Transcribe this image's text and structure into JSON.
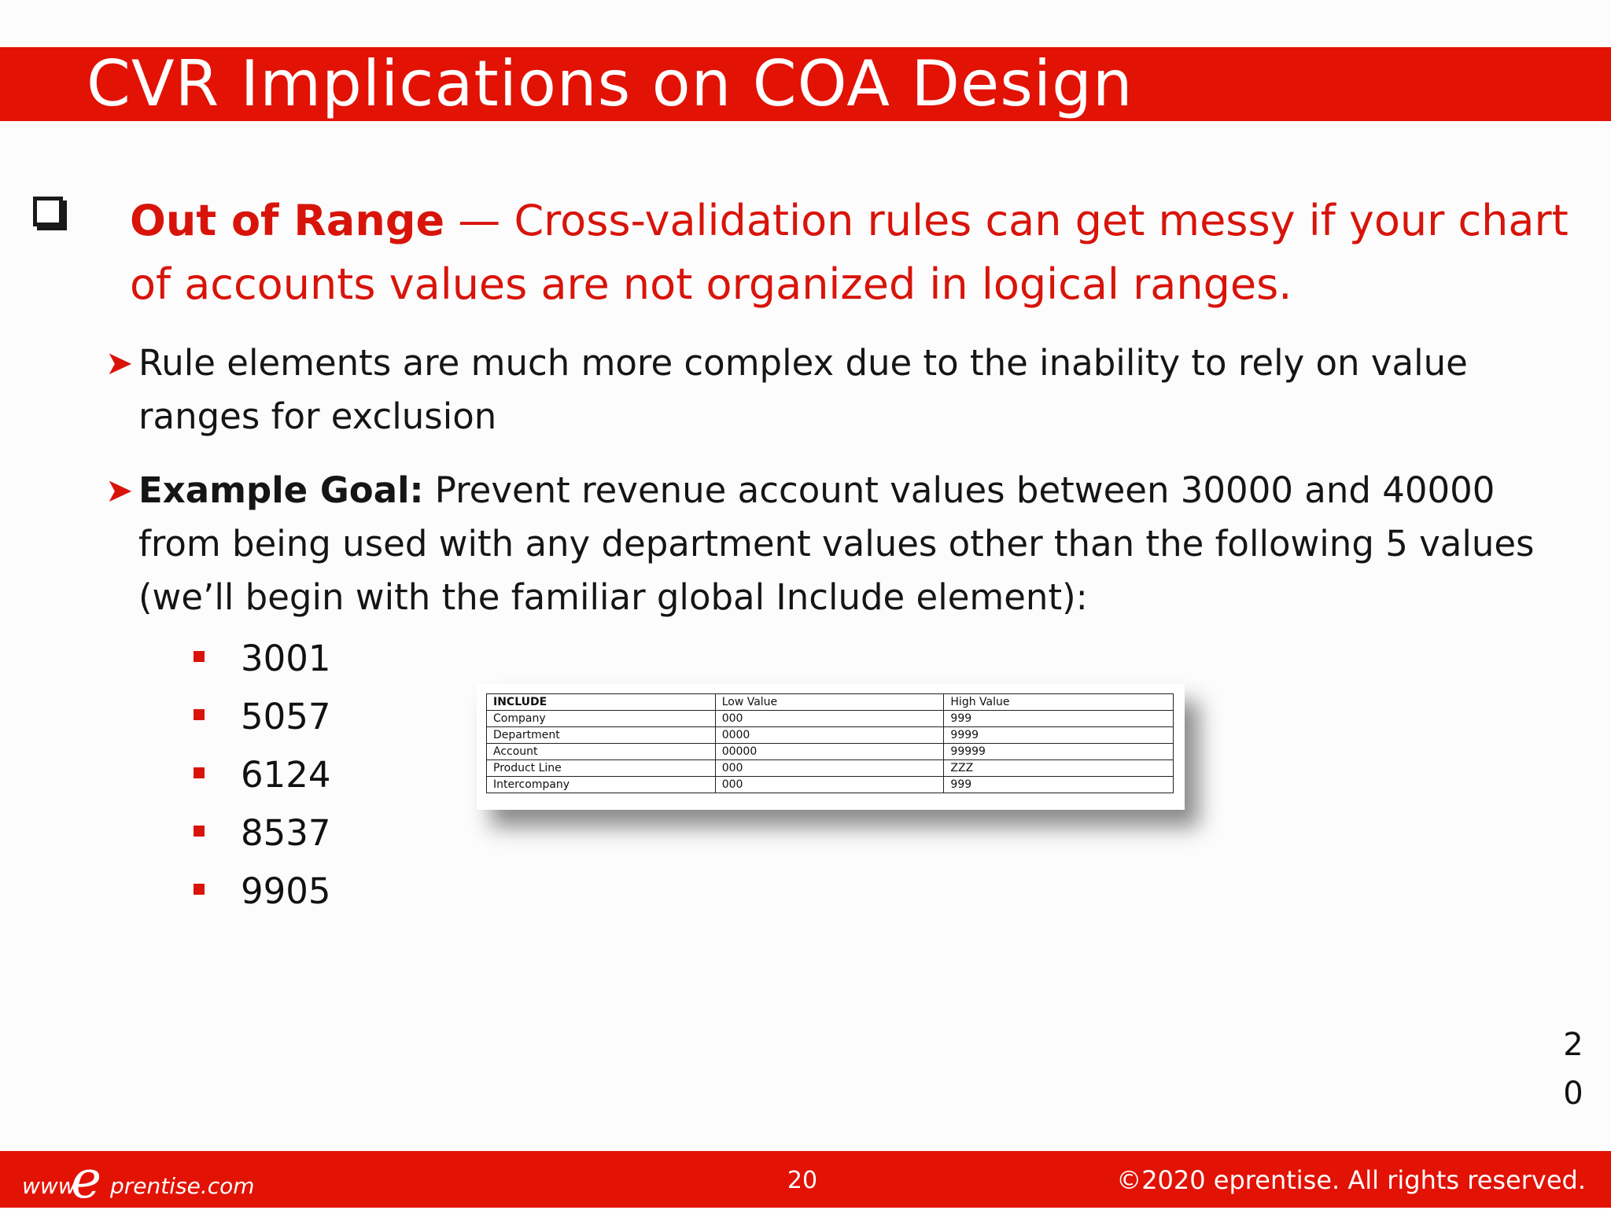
{
  "title": "CVR Implications on COA Design",
  "heading": {
    "bold": "Out of Range",
    "rest": " — Cross-validation rules can get messy if your chart of accounts values are not organized in logical ranges."
  },
  "points": [
    {
      "bold": "",
      "text": "Rule elements are much more complex due to the inability to rely on value ranges for exclusion"
    },
    {
      "bold": "Example Goal:",
      "text": " Prevent revenue account values between 30000 and 40000 from being used with any department values other than the following 5 values (we’ll begin with the familiar global Include element):"
    }
  ],
  "values": [
    "3001",
    "5057",
    "6124",
    "8537",
    "9905"
  ],
  "include_table": {
    "headers": [
      "INCLUDE",
      "Low Value",
      "High Value"
    ],
    "rows": [
      [
        "Company",
        "000",
        "999"
      ],
      [
        "Department",
        "0000",
        "9999"
      ],
      [
        "Account",
        "00000",
        "99999"
      ],
      [
        "Product Line",
        "000",
        "ZZZ"
      ],
      [
        "Intercompany",
        "000",
        "999"
      ]
    ]
  },
  "side_number": [
    "2",
    "0"
  ],
  "footer": {
    "logo_www": "www.",
    "logo_e": "e",
    "logo_rest": "prentise.com",
    "page": "20",
    "copyright": "©2020 eprentise. All rights reserved."
  },
  "colors": {
    "accent": "#e21205",
    "heading_red": "#d8140a"
  }
}
